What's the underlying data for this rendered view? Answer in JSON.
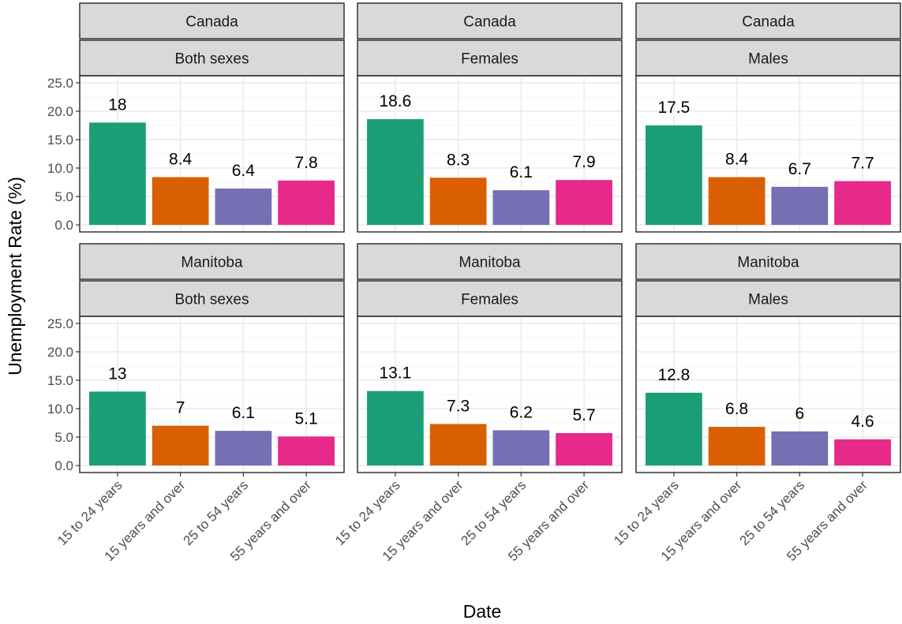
{
  "chart_data": {
    "type": "bar",
    "title": "",
    "xlabel": "Date",
    "ylabel": "Unemployment Rate (%)",
    "ylim": [
      0,
      25
    ],
    "yticks": [
      "0.0",
      "5.0",
      "10.0",
      "15.0",
      "20.0",
      "25.0"
    ],
    "grid": true,
    "legend": "none",
    "categories": [
      "15 to 24 years",
      "15 years and over",
      "25 to 54 years",
      "55 years and over"
    ],
    "colors": [
      "#1b9e77",
      "#d95f02",
      "#7570b3",
      "#e7298a"
    ],
    "panels": [
      {
        "region": "Canada",
        "sex": "Both sexes",
        "values": [
          18,
          8.4,
          6.4,
          7.8
        ],
        "labels": [
          "18",
          "8.4",
          "6.4",
          "7.8"
        ]
      },
      {
        "region": "Canada",
        "sex": "Females",
        "values": [
          18.6,
          8.3,
          6.1,
          7.9
        ],
        "labels": [
          "18.6",
          "8.3",
          "6.1",
          "7.9"
        ]
      },
      {
        "region": "Canada",
        "sex": "Males",
        "values": [
          17.5,
          8.4,
          6.7,
          7.7
        ],
        "labels": [
          "17.5",
          "8.4",
          "6.7",
          "7.7"
        ]
      },
      {
        "region": "Manitoba",
        "sex": "Both sexes",
        "values": [
          13,
          7,
          6.1,
          5.1
        ],
        "labels": [
          "13",
          "7",
          "6.1",
          "5.1"
        ]
      },
      {
        "region": "Manitoba",
        "sex": "Females",
        "values": [
          13.1,
          7.3,
          6.2,
          5.7
        ],
        "labels": [
          "13.1",
          "7.3",
          "6.2",
          "5.7"
        ]
      },
      {
        "region": "Manitoba",
        "sex": "Males",
        "values": [
          12.8,
          6.8,
          6,
          4.6
        ],
        "labels": [
          "12.8",
          "6.8",
          "6",
          "4.6"
        ]
      }
    ]
  }
}
